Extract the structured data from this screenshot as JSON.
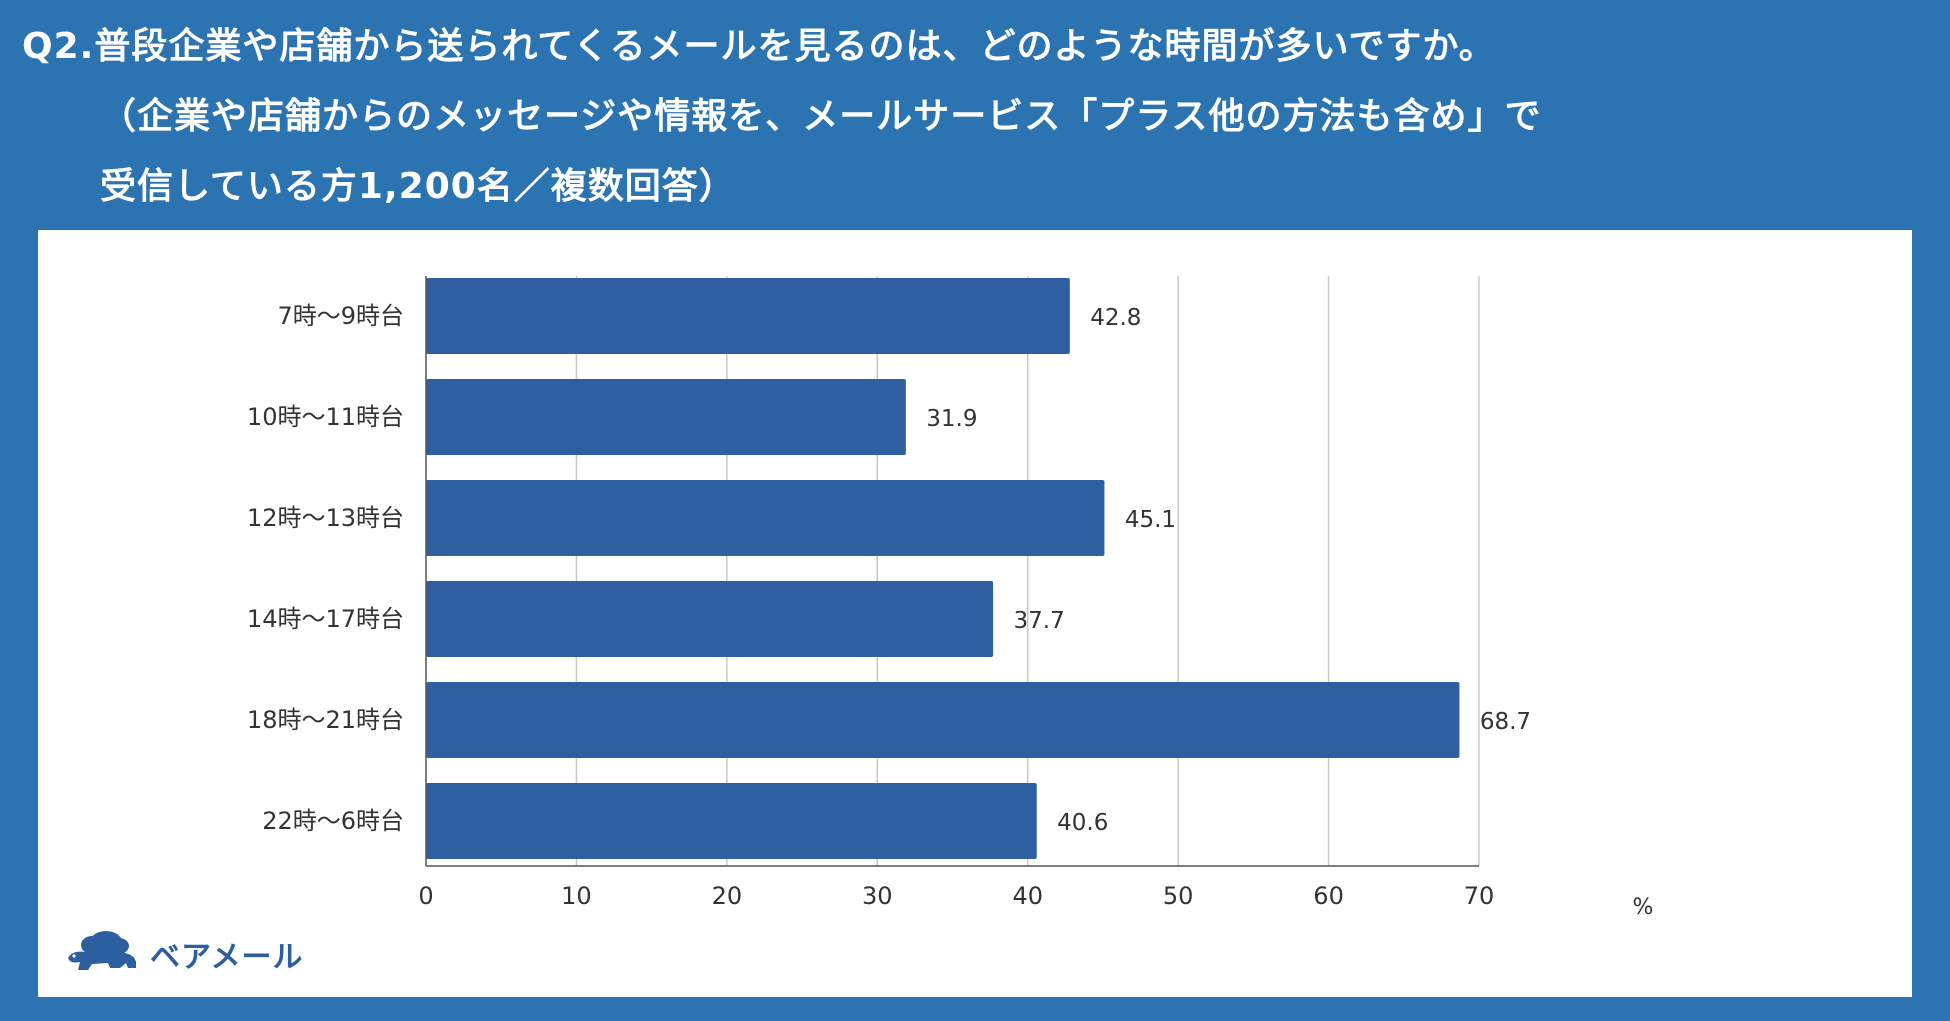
{
  "title": {
    "line1": "Q2.普段企業や店舗から送られてくるメールを見るのは、どのような時間が多いですか。",
    "line2": "（企業や店舗からのメッセージや情報を、メールサービス「プラス他の方法も含め」で",
    "line3": "受信している方1,200名／複数回答）"
  },
  "logo": {
    "text": "ベアメール",
    "icon": "bear-cloud-logo"
  },
  "colors": {
    "background": "#2b74b1",
    "bar": "#2e5fa1",
    "grid": "#c8c8c8",
    "axis": "#555555",
    "logo": "#2b5fa0"
  },
  "chart_data": {
    "type": "bar",
    "orientation": "horizontal",
    "categories": [
      "7時～9時台",
      "10時～11時台",
      "12時～13時台",
      "14時～17時台",
      "18時～21時台",
      "22時～6時台"
    ],
    "values": [
      42.8,
      31.9,
      45.1,
      37.7,
      68.7,
      40.6
    ],
    "value_labels": [
      "42.8",
      "31.9",
      "45.1",
      "37.7",
      "68.7",
      "40.6"
    ],
    "xlim": [
      0,
      70
    ],
    "xticks": [
      0,
      10,
      20,
      30,
      40,
      50,
      60,
      70
    ],
    "xunit": "%",
    "grid": "vertical",
    "legend": "none"
  }
}
